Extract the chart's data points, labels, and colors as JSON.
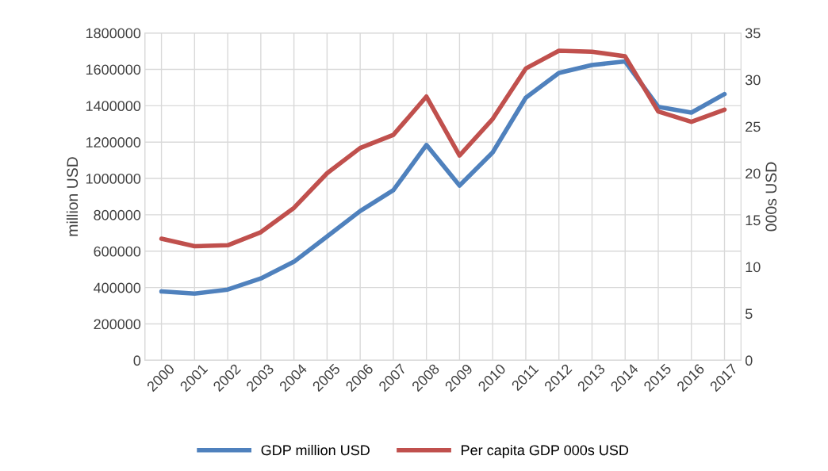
{
  "chart_data": {
    "type": "line",
    "ylabel": "million USD",
    "y2label": "000s USD",
    "categories": [
      "2000",
      "2001",
      "2002",
      "2003",
      "2004",
      "2005",
      "2006",
      "2007",
      "2008",
      "2009",
      "2010",
      "2011",
      "2012",
      "2013",
      "2014",
      "2015",
      "2016",
      "2017"
    ],
    "series": [
      {
        "name": "GDP million USD",
        "color": "#4f81bd",
        "values": [
          379000,
          367000,
          389000,
          450000,
          542000,
          681000,
          821000,
          935000,
          1184000,
          961000,
          1143000,
          1444000,
          1580000,
          1624000,
          1643000,
          1394000,
          1362000,
          1464000
        ]
      },
      {
        "name": "Per capita GDP 000s USD",
        "color": "#c0504d",
        "axis": "y2",
        "values": [
          13.0,
          12.2,
          12.3,
          13.7,
          16.3,
          20.0,
          22.7,
          24.1,
          28.2,
          21.9,
          25.8,
          31.2,
          33.1,
          33.0,
          32.5,
          26.6,
          25.5,
          26.8
        ]
      }
    ],
    "ylim": [
      0,
      1800000
    ],
    "yticks": [
      0,
      200000,
      400000,
      600000,
      800000,
      1000000,
      1200000,
      1400000,
      1600000,
      1800000
    ],
    "y2lim": [
      0,
      35
    ],
    "y2ticks": [
      0,
      5,
      10,
      15,
      20,
      25,
      30,
      35
    ],
    "grid": true,
    "legend": "bottom",
    "marker": "none",
    "line_style": "solid"
  }
}
